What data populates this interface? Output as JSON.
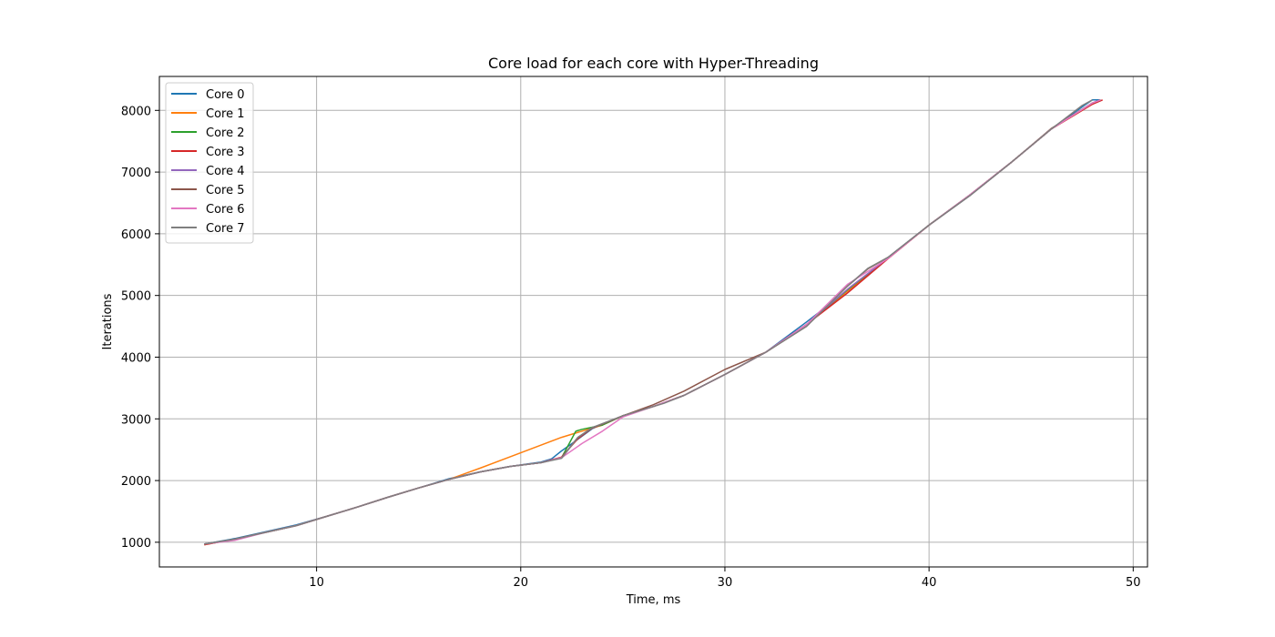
{
  "chart_data": {
    "type": "line",
    "title": "Core load for each core with Hyper-Threading",
    "xlabel": "Time, ms",
    "ylabel": "Iterations",
    "xlim": [
      2.3,
      50.7
    ],
    "ylim": [
      600,
      8550
    ],
    "xticks": [
      10,
      20,
      30,
      40,
      50
    ],
    "yticks": [
      1000,
      2000,
      3000,
      4000,
      5000,
      6000,
      7000,
      8000
    ],
    "grid": true,
    "legend_position": "top-left",
    "series": [
      {
        "name": "Core 0",
        "color": "#1f77b4",
        "points": [
          [
            4.5,
            970
          ],
          [
            6,
            1060
          ],
          [
            7.5,
            1170
          ],
          [
            9,
            1280
          ],
          [
            10.5,
            1420
          ],
          [
            12,
            1570
          ],
          [
            13.5,
            1730
          ],
          [
            15,
            1880
          ],
          [
            16.5,
            2030
          ],
          [
            18,
            2140
          ],
          [
            19.5,
            2230
          ],
          [
            21,
            2300
          ],
          [
            21.5,
            2350
          ],
          [
            22,
            2480
          ],
          [
            22.6,
            2620
          ],
          [
            23.5,
            2840
          ],
          [
            25,
            3050
          ],
          [
            26.5,
            3200
          ],
          [
            28,
            3380
          ],
          [
            30,
            3720
          ],
          [
            32,
            4080
          ],
          [
            34,
            4570
          ],
          [
            36,
            5080
          ],
          [
            38,
            5620
          ],
          [
            40,
            6140
          ],
          [
            42,
            6620
          ],
          [
            44,
            7150
          ],
          [
            46,
            7700
          ],
          [
            47.6,
            8080
          ],
          [
            48,
            8170
          ],
          [
            48.4,
            8170
          ]
        ]
      },
      {
        "name": "Core 1",
        "color": "#ff7f0e",
        "points": [
          [
            4.5,
            960
          ],
          [
            6,
            1050
          ],
          [
            7.5,
            1160
          ],
          [
            9,
            1270
          ],
          [
            10.5,
            1420
          ],
          [
            12,
            1570
          ],
          [
            13.5,
            1730
          ],
          [
            15,
            1880
          ],
          [
            16.5,
            2020
          ],
          [
            18,
            2200
          ],
          [
            20,
            2450
          ],
          [
            22,
            2700
          ],
          [
            23,
            2800
          ],
          [
            24,
            2900
          ],
          [
            25,
            3050
          ],
          [
            26.5,
            3200
          ],
          [
            28,
            3380
          ],
          [
            30,
            3720
          ],
          [
            32,
            4080
          ],
          [
            34,
            4530
          ],
          [
            36,
            5070
          ],
          [
            38,
            5600
          ],
          [
            40,
            6140
          ],
          [
            42,
            6630
          ],
          [
            44,
            7150
          ],
          [
            46,
            7700
          ],
          [
            48,
            8100
          ],
          [
            48.4,
            8170
          ]
        ]
      },
      {
        "name": "Core 2",
        "color": "#2ca02c",
        "points": [
          [
            4.5,
            970
          ],
          [
            6,
            1050
          ],
          [
            7.5,
            1160
          ],
          [
            9,
            1270
          ],
          [
            10.5,
            1420
          ],
          [
            12,
            1570
          ],
          [
            13.5,
            1730
          ],
          [
            15,
            1880
          ],
          [
            16.5,
            2020
          ],
          [
            18,
            2140
          ],
          [
            19.5,
            2230
          ],
          [
            21,
            2290
          ],
          [
            22,
            2370
          ],
          [
            22.7,
            2800
          ],
          [
            23,
            2830
          ],
          [
            24,
            2900
          ],
          [
            25,
            3050
          ],
          [
            26.5,
            3200
          ],
          [
            28,
            3380
          ],
          [
            30,
            3720
          ],
          [
            32,
            4080
          ],
          [
            34,
            4530
          ],
          [
            36,
            5090
          ],
          [
            38,
            5610
          ],
          [
            40,
            6140
          ],
          [
            42,
            6630
          ],
          [
            44,
            7150
          ],
          [
            46,
            7700
          ],
          [
            48,
            8120
          ],
          [
            48.4,
            8170
          ]
        ]
      },
      {
        "name": "Core 3",
        "color": "#d62728",
        "points": [
          [
            4.5,
            960
          ],
          [
            6,
            1050
          ],
          [
            7.5,
            1160
          ],
          [
            9,
            1270
          ],
          [
            10.5,
            1420
          ],
          [
            12,
            1570
          ],
          [
            13.5,
            1730
          ],
          [
            15,
            1880
          ],
          [
            16.5,
            2020
          ],
          [
            18,
            2140
          ],
          [
            19.5,
            2230
          ],
          [
            21,
            2290
          ],
          [
            22,
            2380
          ],
          [
            22.8,
            2680
          ],
          [
            23.5,
            2850
          ],
          [
            25,
            3050
          ],
          [
            26.5,
            3200
          ],
          [
            28,
            3380
          ],
          [
            30,
            3720
          ],
          [
            32,
            4080
          ],
          [
            34,
            4530
          ],
          [
            36,
            5040
          ],
          [
            38,
            5600
          ],
          [
            40,
            6140
          ],
          [
            42,
            6630
          ],
          [
            44,
            7150
          ],
          [
            46,
            7700
          ],
          [
            48,
            8100
          ],
          [
            48.5,
            8170
          ]
        ]
      },
      {
        "name": "Core 4",
        "color": "#9467bd",
        "points": [
          [
            4.5,
            970
          ],
          [
            6,
            1050
          ],
          [
            7.5,
            1160
          ],
          [
            9,
            1270
          ],
          [
            10.5,
            1420
          ],
          [
            12,
            1570
          ],
          [
            13.5,
            1730
          ],
          [
            15,
            1880
          ],
          [
            16.5,
            2020
          ],
          [
            18,
            2140
          ],
          [
            19.5,
            2230
          ],
          [
            21,
            2290
          ],
          [
            22,
            2370
          ],
          [
            22.8,
            2700
          ],
          [
            23.5,
            2850
          ],
          [
            25,
            3050
          ],
          [
            26.5,
            3200
          ],
          [
            28,
            3380
          ],
          [
            30,
            3720
          ],
          [
            32,
            4080
          ],
          [
            34,
            4530
          ],
          [
            36,
            5100
          ],
          [
            38,
            5610
          ],
          [
            40,
            6140
          ],
          [
            42,
            6630
          ],
          [
            44,
            7150
          ],
          [
            46,
            7700
          ],
          [
            48,
            8120
          ],
          [
            48.4,
            8170
          ]
        ]
      },
      {
        "name": "Core 5",
        "color": "#8c564b",
        "points": [
          [
            4.5,
            970
          ],
          [
            6,
            1050
          ],
          [
            7.5,
            1160
          ],
          [
            9,
            1270
          ],
          [
            10.5,
            1420
          ],
          [
            12,
            1570
          ],
          [
            13.5,
            1730
          ],
          [
            15,
            1880
          ],
          [
            16.5,
            2020
          ],
          [
            18,
            2140
          ],
          [
            19.5,
            2230
          ],
          [
            21,
            2290
          ],
          [
            22,
            2370
          ],
          [
            22.8,
            2700
          ],
          [
            23.5,
            2850
          ],
          [
            25,
            3050
          ],
          [
            26.5,
            3230
          ],
          [
            28,
            3450
          ],
          [
            30,
            3800
          ],
          [
            32,
            4080
          ],
          [
            34,
            4500
          ],
          [
            36,
            5150
          ],
          [
            37,
            5430
          ],
          [
            38,
            5620
          ],
          [
            40,
            6140
          ],
          [
            42,
            6620
          ],
          [
            44,
            7150
          ],
          [
            46,
            7710
          ],
          [
            48,
            8120
          ],
          [
            48.4,
            8170
          ]
        ]
      },
      {
        "name": "Core 6",
        "color": "#e377c2",
        "points": [
          [
            4.5,
            970
          ],
          [
            6,
            1030
          ],
          [
            7.5,
            1160
          ],
          [
            9,
            1270
          ],
          [
            10.5,
            1420
          ],
          [
            12,
            1570
          ],
          [
            13.5,
            1730
          ],
          [
            15,
            1880
          ],
          [
            16.5,
            2020
          ],
          [
            18,
            2140
          ],
          [
            19.5,
            2230
          ],
          [
            21,
            2290
          ],
          [
            22,
            2370
          ],
          [
            23,
            2600
          ],
          [
            24,
            2800
          ],
          [
            25,
            3030
          ],
          [
            26.5,
            3200
          ],
          [
            28,
            3380
          ],
          [
            30,
            3720
          ],
          [
            32,
            4080
          ],
          [
            34,
            4530
          ],
          [
            36,
            5180
          ],
          [
            38,
            5600
          ],
          [
            40,
            6140
          ],
          [
            42,
            6630
          ],
          [
            44,
            7150
          ],
          [
            46,
            7700
          ],
          [
            48,
            8120
          ],
          [
            48.4,
            8170
          ]
        ]
      },
      {
        "name": "Core 7",
        "color": "#7f7f7f",
        "points": [
          [
            4.5,
            970
          ],
          [
            6,
            1050
          ],
          [
            7.5,
            1160
          ],
          [
            9,
            1270
          ],
          [
            10.5,
            1420
          ],
          [
            12,
            1570
          ],
          [
            13.5,
            1730
          ],
          [
            15,
            1880
          ],
          [
            16.5,
            2020
          ],
          [
            18,
            2140
          ],
          [
            19.5,
            2230
          ],
          [
            21,
            2290
          ],
          [
            22,
            2360
          ],
          [
            22.8,
            2700
          ],
          [
            23.5,
            2860
          ],
          [
            25,
            3050
          ],
          [
            26.5,
            3200
          ],
          [
            27,
            3250
          ],
          [
            28,
            3380
          ],
          [
            30,
            3720
          ],
          [
            32,
            4080
          ],
          [
            34,
            4500
          ],
          [
            36,
            5150
          ],
          [
            37,
            5440
          ],
          [
            38,
            5620
          ],
          [
            40,
            6140
          ],
          [
            42,
            6620
          ],
          [
            44,
            7150
          ],
          [
            46,
            7700
          ],
          [
            47.5,
            8080
          ],
          [
            48,
            8170
          ]
        ]
      }
    ]
  }
}
